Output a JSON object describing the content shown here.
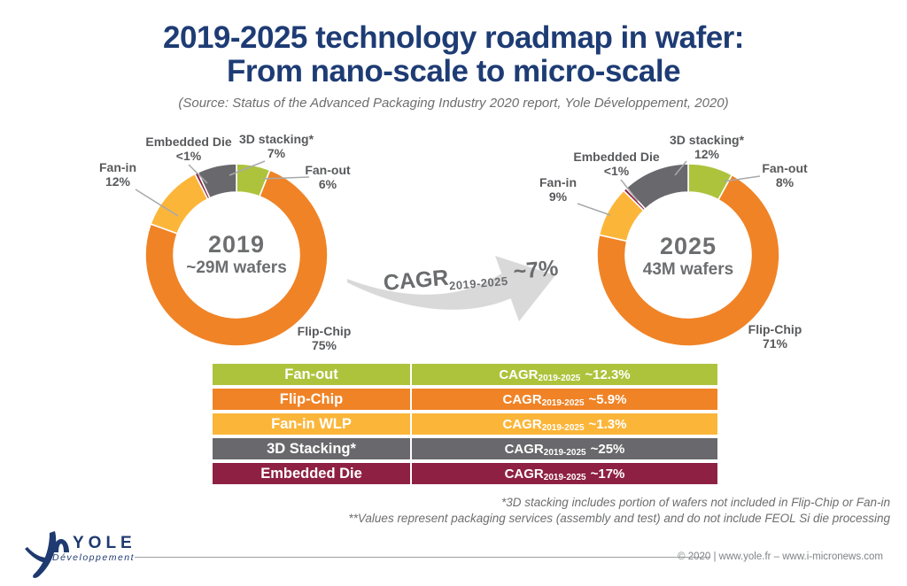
{
  "page": {
    "title_line1": "2019-2025 technology roadmap in wafer:",
    "title_line2": "From nano-scale to micro-scale",
    "source": "(Source: Status of the Advanced Packaging Industry 2020 report, Yole Développement, 2020)"
  },
  "colors": {
    "title_navy": "#1e3c74",
    "fan_out_green": "#adc33c",
    "flip_chip_orange": "#f08326",
    "fan_in_yellow": "#fbb63a",
    "stacking_gray": "#69686c",
    "embedded_maroon": "#8e2143",
    "label_gray": "#58595b",
    "center_text_gray": "#6d6e70",
    "arrow_fill_gray": "#d9d9da"
  },
  "chart_data": [
    {
      "type": "pie",
      "subtype": "donut",
      "center_line1": "2019",
      "center_line2": "~29M wafers",
      "slices": [
        {
          "label": "Fan-out",
          "pct_label": "6%",
          "value": 6,
          "color": "#adc33c"
        },
        {
          "label": "Flip-Chip",
          "pct_label": "75%",
          "value": 75,
          "color": "#f08326"
        },
        {
          "label": "Fan-in",
          "pct_label": "12%",
          "value": 12,
          "color": "#fbb63a"
        },
        {
          "label": "Embedded Die",
          "pct_label": "<1%",
          "value": 0.6,
          "color": "#8e2143"
        },
        {
          "label": "3D stacking*",
          "pct_label": "7%",
          "value": 7,
          "color": "#69686c"
        }
      ]
    },
    {
      "type": "pie",
      "subtype": "donut",
      "center_line1": "2025",
      "center_line2": "43M wafers",
      "slices": [
        {
          "label": "Fan-out",
          "pct_label": "8%",
          "value": 8,
          "color": "#adc33c"
        },
        {
          "label": "Flip-Chip",
          "pct_label": "71%",
          "value": 71,
          "color": "#f08326"
        },
        {
          "label": "Fan-in",
          "pct_label": "9%",
          "value": 9,
          "color": "#fbb63a"
        },
        {
          "label": "Embedded Die",
          "pct_label": "<1%",
          "value": 0.6,
          "color": "#8e2143"
        },
        {
          "label": "3D stacking*",
          "pct_label": "12%",
          "value": 12,
          "color": "#69686c"
        }
      ]
    }
  ],
  "arrow": {
    "prefix": "CAGR",
    "subscript": "2019-2025",
    "suffix": "~7%"
  },
  "table": {
    "rows": [
      {
        "label": "Fan-out",
        "prefix": "CAGR",
        "subscript": "2019-2025",
        "value": "~12.3%",
        "color": "#adc33c"
      },
      {
        "label": "Flip-Chip",
        "prefix": "CAGR",
        "subscript": "2019-2025",
        "value": "~5.9%",
        "color": "#f08326"
      },
      {
        "label": "Fan-in WLP",
        "prefix": "CAGR",
        "subscript": "2019-2025",
        "value": "~1.3%",
        "color": "#fbb63a"
      },
      {
        "label": "3D Stacking*",
        "prefix": "CAGR",
        "subscript": "2019-2025",
        "value": "~25%",
        "color": "#69686c"
      },
      {
        "label": "Embedded Die",
        "prefix": "CAGR",
        "subscript": "2019-2025",
        "value": "~17%",
        "color": "#8e2143"
      }
    ]
  },
  "footnotes": {
    "line1": "*3D stacking includes portion of wafers not included in Flip-Chip or Fan-in",
    "line2": "**Values represent packaging services (assembly and test) and do not include FEOL Si die processing"
  },
  "footer": {
    "logo_main": "YOLE",
    "logo_sub": "Développement",
    "copyright": "© 2020 | www.yole.fr – www.i-micronews.com"
  }
}
